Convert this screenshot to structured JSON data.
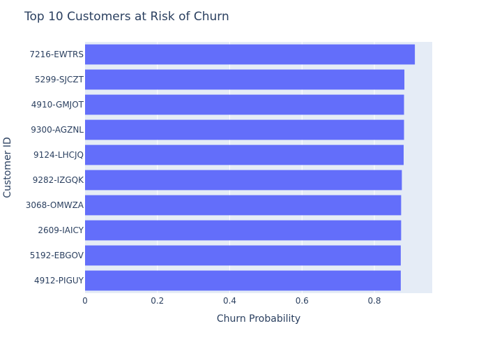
{
  "chart_data": {
    "type": "bar",
    "orientation": "horizontal",
    "title": "Top 10 Customers at Risk of Churn",
    "xlabel": "Churn Probability",
    "ylabel": "Customer ID",
    "xlim": [
      0,
      0.96
    ],
    "xticks": [
      0,
      0.2,
      0.4,
      0.6,
      0.8
    ],
    "xtick_labels": [
      "0",
      "0.2",
      "0.4",
      "0.6",
      "0.8"
    ],
    "grid": true,
    "bar_color": "#636efa",
    "plot_bg": "#e5ecf6",
    "categories": [
      "7216-EWTRS",
      "5299-SJCZT",
      "4910-GMJOT",
      "9300-AGZNL",
      "9124-LHCJQ",
      "9282-IZGQK",
      "3068-OMWZA",
      "2609-IAICY",
      "5192-EBGOV",
      "4912-PIGUY"
    ],
    "values": [
      0.912,
      0.883,
      0.882,
      0.882,
      0.881,
      0.876,
      0.874,
      0.874,
      0.873,
      0.873
    ]
  }
}
